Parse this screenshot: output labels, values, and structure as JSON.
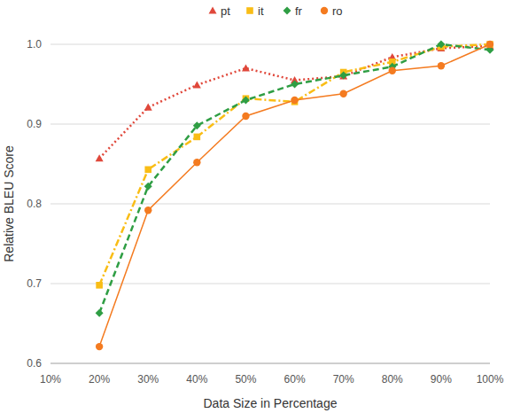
{
  "chart_data": {
    "type": "line",
    "x_label": "Data Size in Percentage",
    "y_label": "Relative BLEU Score",
    "categories": [
      "10%",
      "20%",
      "30%",
      "40%",
      "50%",
      "60%",
      "70%",
      "80%",
      "90%",
      "100%"
    ],
    "series": [
      {
        "name": "pt",
        "color": "#e0483b",
        "marker": "triangle",
        "line_style": "dotted",
        "values": [
          null,
          0.857,
          0.921,
          0.949,
          0.97,
          0.955,
          0.96,
          0.984,
          0.995,
          0.998
        ]
      },
      {
        "name": "it",
        "color": "#f9bd16",
        "marker": "square",
        "line_style": "dashdot",
        "values": [
          null,
          0.698,
          0.843,
          0.884,
          0.932,
          0.928,
          0.965,
          0.978,
          0.997,
          1.0
        ]
      },
      {
        "name": "fr",
        "color": "#2f9e44",
        "marker": "diamond",
        "line_style": "dashed",
        "values": [
          null,
          0.663,
          0.822,
          0.898,
          0.93,
          0.95,
          0.961,
          0.972,
          1.0,
          0.993
        ]
      },
      {
        "name": "ro",
        "color": "#f47b20",
        "marker": "circle",
        "line_style": "solid",
        "values": [
          null,
          0.621,
          0.792,
          0.852,
          0.91,
          0.93,
          0.938,
          0.967,
          0.973,
          1.0
        ]
      }
    ],
    "ylim": [
      0.6,
      1.0
    ],
    "yticks": [
      0.6,
      0.7,
      0.8,
      0.9,
      {
        "value": 1,
        "label": "1.0"
      }
    ],
    "grid": true,
    "legend": "top"
  }
}
